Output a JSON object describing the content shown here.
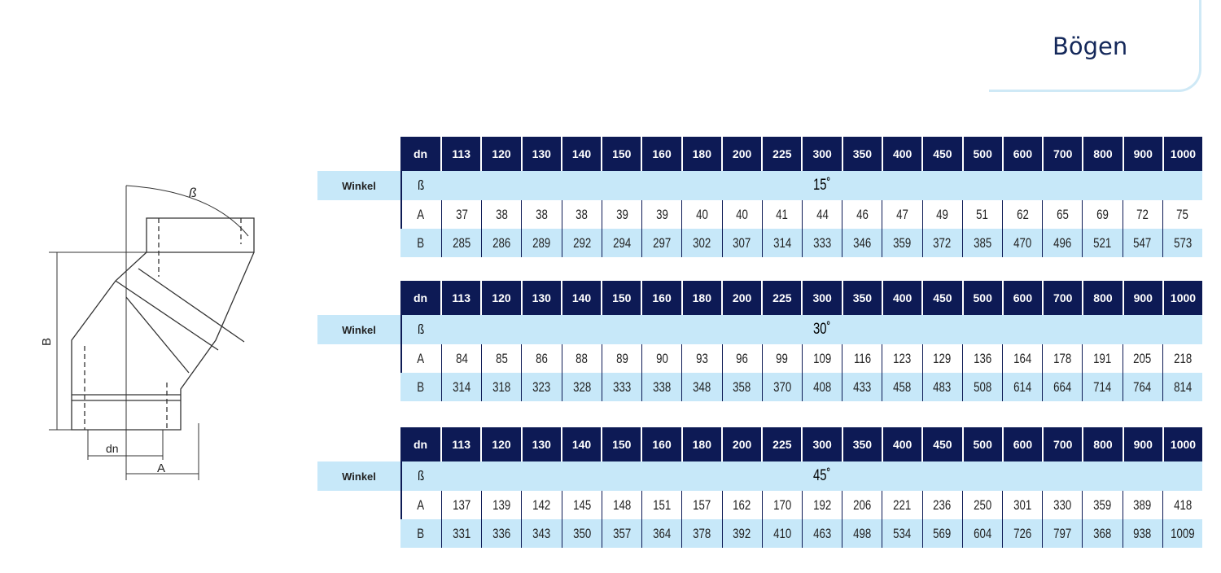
{
  "title": "Bögen",
  "colors": {
    "header_bg": "#0d1a55",
    "row_highlight": "#c7e8f9"
  },
  "diagram": {
    "labels": {
      "beta": "ß",
      "B": "B",
      "dn": "dn",
      "A": "A"
    }
  },
  "columns_label": "dn",
  "dn": [
    "113",
    "120",
    "130",
    "140",
    "150",
    "160",
    "180",
    "200",
    "225",
    "300",
    "350",
    "400",
    "450",
    "500",
    "600",
    "700",
    "800",
    "900",
    "1000"
  ],
  "tables": [
    {
      "row_label": "Winkel",
      "beta_symbol": "ß",
      "angle": "15˚",
      "A": [
        "37",
        "38",
        "38",
        "38",
        "39",
        "39",
        "40",
        "40",
        "41",
        "44",
        "46",
        "47",
        "49",
        "51",
        "62",
        "65",
        "69",
        "72",
        "75"
      ],
      "B": [
        "285",
        "286",
        "289",
        "292",
        "294",
        "297",
        "302",
        "307",
        "314",
        "333",
        "346",
        "359",
        "372",
        "385",
        "470",
        "496",
        "521",
        "547",
        "573"
      ]
    },
    {
      "row_label": "Winkel",
      "beta_symbol": "ß",
      "angle": "30˚",
      "A": [
        "84",
        "85",
        "86",
        "88",
        "89",
        "90",
        "93",
        "96",
        "99",
        "109",
        "116",
        "123",
        "129",
        "136",
        "164",
        "178",
        "191",
        "205",
        "218"
      ],
      "B": [
        "314",
        "318",
        "323",
        "328",
        "333",
        "338",
        "348",
        "358",
        "370",
        "408",
        "433",
        "458",
        "483",
        "508",
        "614",
        "664",
        "714",
        "764",
        "814"
      ]
    },
    {
      "row_label": "Winkel",
      "beta_symbol": "ß",
      "angle": "45˚",
      "A": [
        "137",
        "139",
        "142",
        "145",
        "148",
        "151",
        "157",
        "162",
        "170",
        "192",
        "206",
        "221",
        "236",
        "250",
        "301",
        "330",
        "359",
        "389",
        "418"
      ],
      "B": [
        "331",
        "336",
        "343",
        "350",
        "357",
        "364",
        "378",
        "392",
        "410",
        "463",
        "498",
        "534",
        "569",
        "604",
        "726",
        "797",
        "368",
        "938",
        "1009"
      ]
    }
  ],
  "row_names": [
    "A",
    "B"
  ]
}
